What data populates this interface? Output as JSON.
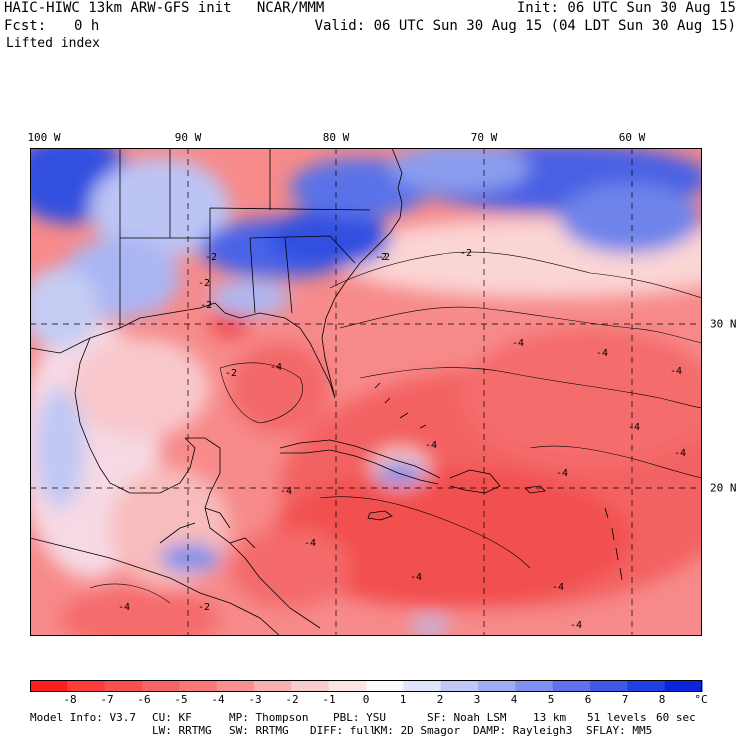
{
  "header": {
    "title": "HAIC-HIWC 13km ARW-GFS init   NCAR/MMM",
    "forecast_label": "Fcst:",
    "forecast_value": "0 h",
    "field_name": "Lifted index",
    "init": "Init: 06 UTC Sun 30 Aug 15",
    "valid": "Valid: 06 UTC Sun 30 Aug 15 (04 LDT Sun 30 Aug 15)"
  },
  "map": {
    "lon_labels": [
      "100 W",
      "90 W",
      "80 W",
      "70 W",
      "60 W"
    ],
    "lat_labels": [
      "30 N",
      "20 N"
    ],
    "contour_labels": [
      "-2",
      "-2",
      "-2",
      "-2",
      "-2",
      "-2",
      "-4",
      "-4",
      "-4",
      "-4",
      "-4",
      "-4",
      "-4",
      "-4",
      "-4",
      "-4",
      "-4",
      "-4",
      "-2",
      "-2",
      "-4",
      "-4"
    ],
    "colors": {
      "strong_negative": "#f03c3c",
      "negative": "#f7787a",
      "weak_negative": "#fbc4c4",
      "neutral": "#f4e7ef",
      "positive_weak": "#c8d0f6",
      "positive": "#6e82e8",
      "positive_strong": "#2040dc"
    }
  },
  "colorbar": {
    "unit": "°C",
    "labels": [
      "-8",
      "-7",
      "-6",
      "-5",
      "-4",
      "-3",
      "-2",
      "-1",
      "0",
      "1",
      "2",
      "3",
      "4",
      "5",
      "6",
      "7",
      "8"
    ],
    "colors": [
      "#ff1e1e",
      "#ff3c3c",
      "#f85050",
      "#f86464",
      "#f87878",
      "#f89090",
      "#f8b0b0",
      "#f8cccc",
      "#fce4e4",
      "#fafafc",
      "#e0e4fc",
      "#c0c8f8",
      "#a0acf4",
      "#8090f0",
      "#6072ec",
      "#4058e8",
      "#2040e4",
      "#0c24dc"
    ]
  },
  "model_info": {
    "row1": [
      "Model Info: V3.7",
      "CU: KF",
      "MP: Thompson",
      "PBL: YSU",
      "SF: Noah LSM",
      "13 km",
      "51 levels",
      "60 sec"
    ],
    "row2": [
      "LW: RRTMG",
      "SW: RRTMG",
      "DIFF: full",
      "KM: 2D Smagor",
      "DAMP: Rayleigh3",
      "SFLAY: MM5"
    ]
  }
}
